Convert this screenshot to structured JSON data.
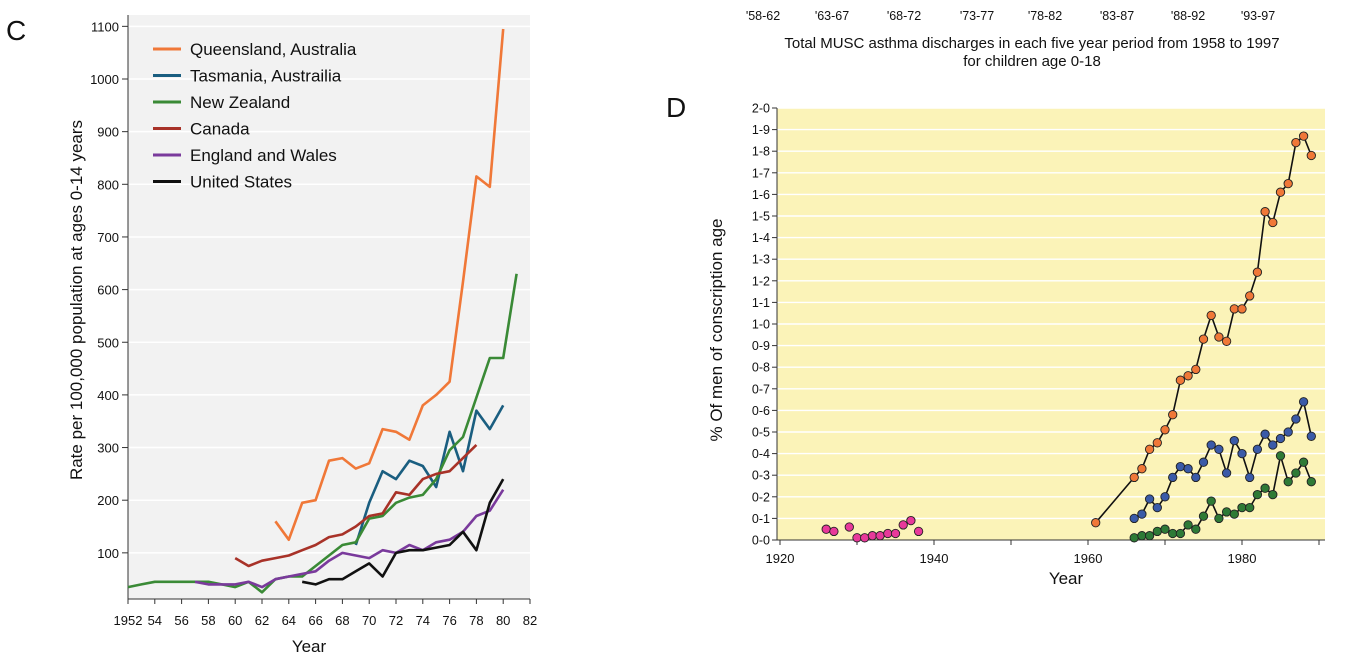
{
  "panel_top": {
    "tick_labels": [
      "'58-62",
      "'63-67",
      "'68-72",
      "'73-77",
      "'78-82",
      "'83-87",
      "'88-92",
      "'93-97"
    ],
    "caption_line1": "Total MUSC asthma discharges in each five year period from 1958 to 1997",
    "caption_line2": "for children age 0-18"
  },
  "chart_data": [
    {
      "panel": "C",
      "type": "line",
      "xlabel": "Year",
      "ylabel": "Rate per 100,000 population at ages 0-14 years",
      "xlim": [
        1952,
        1982
      ],
      "ylim": [
        0,
        1100
      ],
      "x_tick_labels": [
        "1952",
        "54",
        "56",
        "58",
        "60",
        "62",
        "64",
        "66",
        "68",
        "70",
        "72",
        "74",
        "76",
        "78",
        "80",
        "82"
      ],
      "y_tick_labels": [
        "100",
        "200",
        "300",
        "400",
        "500",
        "600",
        "700",
        "800",
        "900",
        "1000",
        "1100"
      ],
      "grid": "horizontal",
      "legend_position": "top-left",
      "background": "#f2f2f2",
      "series": [
        {
          "name": "Queensland, Australia",
          "color": "#f07838",
          "x": [
            1963,
            1964,
            1965,
            1966,
            1967,
            1968,
            1969,
            1970,
            1971,
            1972,
            1973,
            1974,
            1975,
            1976,
            1977,
            1978,
            1979,
            1980
          ],
          "y": [
            160,
            125,
            195,
            200,
            275,
            280,
            260,
            270,
            335,
            330,
            315,
            380,
            400,
            425,
            615,
            815,
            795,
            1095
          ]
        },
        {
          "name": "Tasmania, Austrailia",
          "color": "#1a5e80",
          "x": [
            1969,
            1970,
            1971,
            1972,
            1973,
            1974,
            1975,
            1976,
            1977,
            1978,
            1979,
            1980
          ],
          "y": [
            115,
            195,
            255,
            240,
            275,
            265,
            225,
            330,
            255,
            370,
            335,
            380
          ]
        },
        {
          "name": "New Zealand",
          "color": "#3a8a36",
          "x": [
            1952,
            1953,
            1954,
            1955,
            1956,
            1957,
            1958,
            1959,
            1960,
            1961,
            1962,
            1963,
            1964,
            1965,
            1966,
            1967,
            1968,
            1969,
            1970,
            1971,
            1972,
            1973,
            1974,
            1975,
            1976,
            1977,
            1978,
            1979,
            1980,
            1981
          ],
          "y": [
            35,
            40,
            45,
            45,
            45,
            45,
            45,
            40,
            35,
            45,
            25,
            50,
            55,
            55,
            75,
            95,
            115,
            120,
            165,
            170,
            195,
            205,
            210,
            240,
            295,
            320,
            395,
            470,
            470,
            630
          ]
        },
        {
          "name": "Canada",
          "color": "#a83228",
          "x": [
            1960,
            1961,
            1962,
            1963,
            1964,
            1965,
            1966,
            1967,
            1968,
            1969,
            1970,
            1971,
            1972,
            1973,
            1974,
            1975,
            1976,
            1977,
            1978
          ],
          "y": [
            90,
            75,
            85,
            90,
            95,
            105,
            115,
            130,
            135,
            150,
            170,
            175,
            215,
            210,
            240,
            250,
            255,
            280,
            305
          ]
        },
        {
          "name": "England and Wales",
          "color": "#7a3a9c",
          "x": [
            1957,
            1958,
            1959,
            1960,
            1961,
            1962,
            1963,
            1964,
            1965,
            1966,
            1967,
            1968,
            1969,
            1970,
            1971,
            1972,
            1973,
            1974,
            1975,
            1976,
            1977,
            1978,
            1979,
            1980
          ],
          "y": [
            45,
            40,
            40,
            40,
            45,
            35,
            50,
            55,
            60,
            65,
            85,
            100,
            95,
            90,
            105,
            100,
            115,
            105,
            120,
            125,
            140,
            170,
            180,
            220
          ]
        },
        {
          "name": "United States",
          "color": "#111111",
          "x": [
            1965,
            1966,
            1967,
            1968,
            1969,
            1970,
            1971,
            1972,
            1973,
            1974,
            1975,
            1976,
            1977,
            1978,
            1979,
            1980
          ],
          "y": [
            45,
            40,
            50,
            50,
            65,
            80,
            55,
            100,
            105,
            105,
            110,
            115,
            140,
            105,
            195,
            240
          ]
        }
      ]
    },
    {
      "panel": "D",
      "type": "scatter",
      "xlabel": "Year",
      "ylabel": "% Of men of conscription age",
      "xlim": [
        1920,
        1990
      ],
      "ylim": [
        0,
        2.0
      ],
      "x_tick_labels": [
        "1920",
        "1940",
        "1960",
        "1980"
      ],
      "y_tick_labels": [
        "0-0",
        "0-1",
        "0-2",
        "0-3",
        "0-4",
        "0-5",
        "0-6",
        "0-7",
        "0-8",
        "0-9",
        "1-0",
        "1-1",
        "1-2",
        "1-3",
        "1-4",
        "1-5",
        "1-6",
        "1-7",
        "1-8",
        "1-9",
        "2-0"
      ],
      "grid": "horizontal",
      "background": "#fbf3b8",
      "series": [
        {
          "color": "#e8399a",
          "connected": false,
          "x": [
            1926,
            1927,
            1929,
            1930,
            1931,
            1932,
            1933,
            1934,
            1935,
            1936,
            1937,
            1938
          ],
          "y": [
            0.05,
            0.04,
            0.06,
            0.01,
            0.01,
            0.02,
            0.02,
            0.03,
            0.03,
            0.07,
            0.09,
            0.04
          ]
        },
        {
          "color": "#f07838",
          "connected": true,
          "x": [
            1961,
            1966,
            1967,
            1968,
            1969,
            1970,
            1971,
            1972,
            1973,
            1974,
            1975,
            1976,
            1977,
            1978,
            1979,
            1980,
            1981,
            1982,
            1983,
            1984,
            1985,
            1986,
            1987,
            1988,
            1989
          ],
          "y": [
            0.08,
            0.29,
            0.33,
            0.42,
            0.45,
            0.51,
            0.58,
            0.74,
            0.76,
            0.79,
            0.93,
            1.04,
            0.94,
            0.92,
            1.07,
            1.07,
            1.13,
            1.24,
            1.52,
            1.47,
            1.61,
            1.65,
            1.84,
            1.87,
            1.78
          ]
        },
        {
          "color": "#3a5aa8",
          "connected": true,
          "x": [
            1966,
            1967,
            1968,
            1969,
            1970,
            1971,
            1972,
            1973,
            1974,
            1975,
            1976,
            1977,
            1978,
            1979,
            1980,
            1981,
            1982,
            1983,
            1984,
            1985,
            1986,
            1987,
            1988,
            1989
          ],
          "y": [
            0.1,
            0.12,
            0.19,
            0.15,
            0.2,
            0.29,
            0.34,
            0.33,
            0.29,
            0.36,
            0.44,
            0.42,
            0.31,
            0.46,
            0.4,
            0.29,
            0.42,
            0.49,
            0.44,
            0.47,
            0.5,
            0.56,
            0.64,
            0.48
          ]
        },
        {
          "color": "#2e7a36",
          "connected": true,
          "x": [
            1966,
            1967,
            1968,
            1969,
            1970,
            1971,
            1972,
            1973,
            1974,
            1975,
            1976,
            1977,
            1978,
            1979,
            1980,
            1981,
            1982,
            1983,
            1984,
            1985,
            1986,
            1987,
            1988,
            1989
          ],
          "y": [
            0.01,
            0.02,
            0.02,
            0.04,
            0.05,
            0.03,
            0.03,
            0.07,
            0.05,
            0.11,
            0.18,
            0.1,
            0.13,
            0.12,
            0.15,
            0.15,
            0.21,
            0.24,
            0.21,
            0.39,
            0.27,
            0.31,
            0.36,
            0.27
          ]
        }
      ]
    }
  ],
  "panel_labels": {
    "C": "C",
    "D": "D"
  }
}
